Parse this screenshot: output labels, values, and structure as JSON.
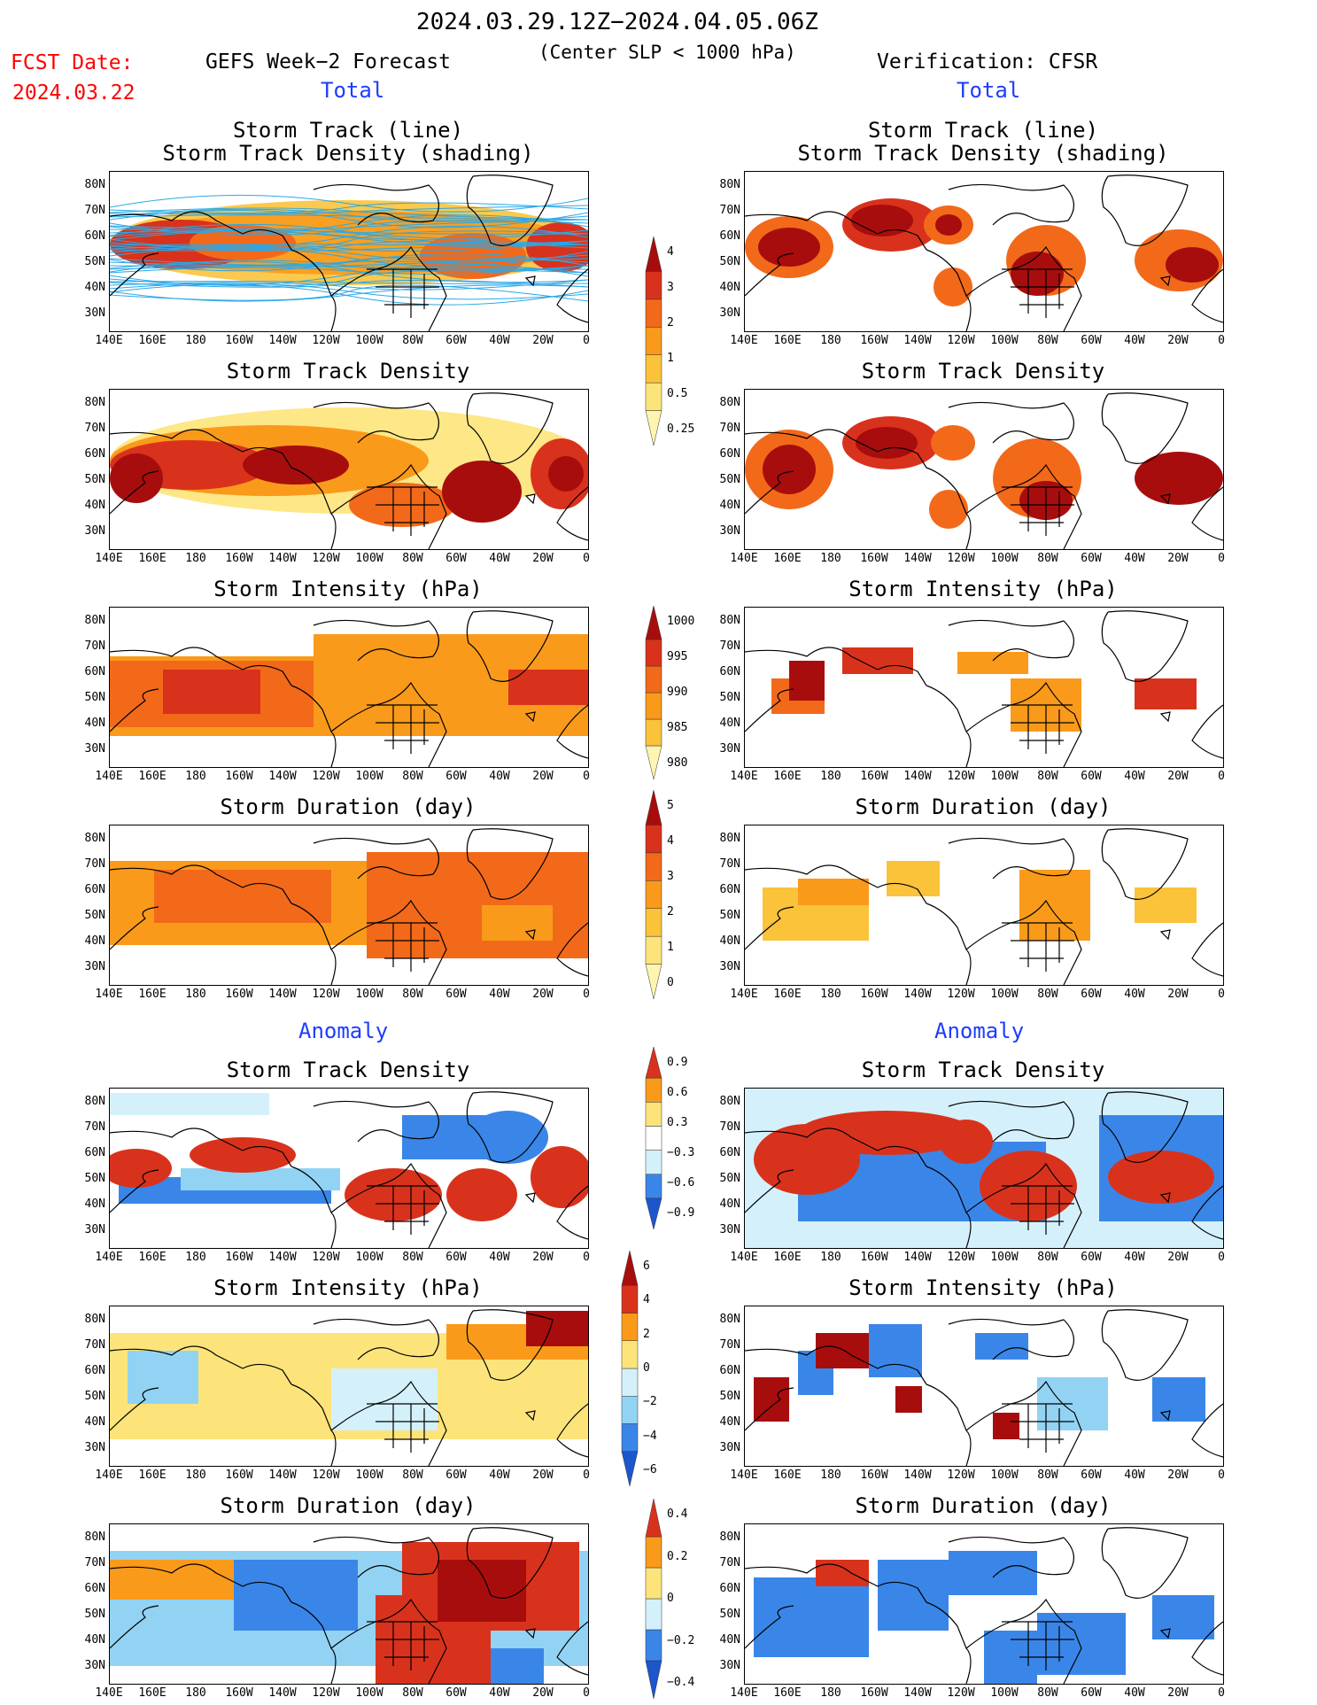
{
  "header": {
    "period": "2024.03.29.12Z−2024.04.05.06Z",
    "criterion": "(Center SLP < 1000 hPa)",
    "fcst_label": "FCST Date:",
    "fcst_date": "2024.03.22",
    "left_title": "GEFS Week−2 Forecast",
    "right_title": "Verification: CFSR",
    "total": "Total",
    "anomaly": "Anomaly"
  },
  "panel_titles": {
    "track_line": "Storm Track (line)",
    "track_density_shading": "Storm Track Density (shading)",
    "track_density": "Storm Track Density",
    "intensity": "Storm Intensity (hPa)",
    "duration": "Storm Duration (day)"
  },
  "axes": {
    "lat_ticks": [
      "80N",
      "70N",
      "60N",
      "50N",
      "40N",
      "30N"
    ],
    "lon_ticks": [
      "140E",
      "160E",
      "180",
      "160W",
      "140W",
      "120W",
      "100W",
      "80W",
      "60W",
      "40W",
      "20W",
      "0"
    ]
  },
  "colorbars": {
    "density": [
      "4",
      "3",
      "2",
      "1",
      "0.5",
      "0.25"
    ],
    "intensity": [
      "1000",
      "995",
      "990",
      "985",
      "980"
    ],
    "duration": [
      "5",
      "4",
      "3",
      "2",
      "1",
      "0"
    ],
    "density_anom": [
      "0.9",
      "0.6",
      "0.3",
      "−0.3",
      "−0.6",
      "−0.9"
    ],
    "intensity_anom": [
      "6",
      "4",
      "2",
      "0",
      "−2",
      "−4",
      "−6"
    ],
    "duration_anom": [
      "0.4",
      "0.2",
      "0",
      "−0.2",
      "−0.4"
    ]
  },
  "colors": {
    "warm": [
      "#fff5b0",
      "#fde47a",
      "#fbc33a",
      "#f99a1b",
      "#f2691a",
      "#d9321c",
      "#a80d0d"
    ],
    "cool": [
      "#d4f1fb",
      "#92d3f3",
      "#3a86e8",
      "#1c56cc"
    ],
    "track_line": "#2aa8e8",
    "title_red": "#ff0000",
    "title_blue": "#1e3cff"
  }
}
